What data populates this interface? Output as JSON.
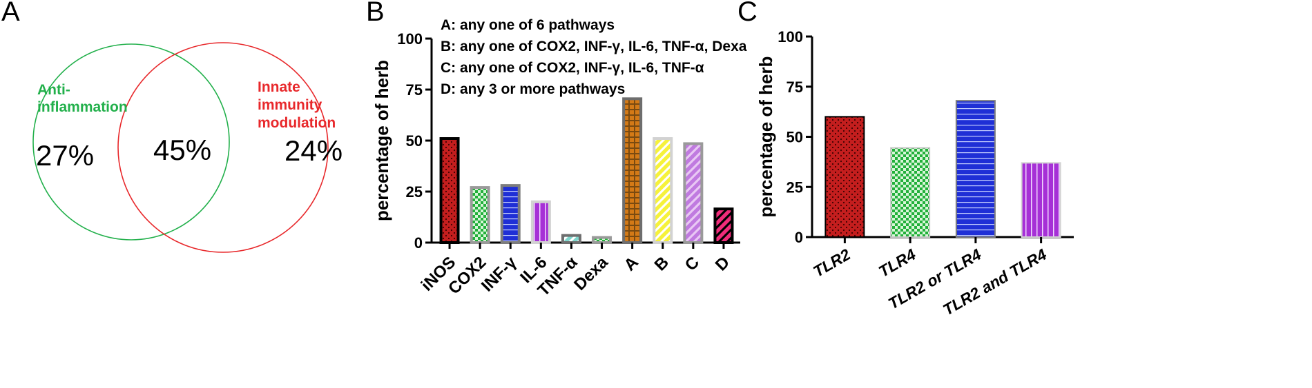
{
  "panels": {
    "a": {
      "letter": "A",
      "circles": [
        {
          "label_lines": [
            "Anti-",
            "inflammation"
          ],
          "color": "#22b04b"
        },
        {
          "label_lines": [
            "Innate",
            "immunity",
            "modulation"
          ],
          "color": "#e8282b"
        }
      ],
      "regions": [
        "27%",
        "45%",
        "24%"
      ]
    },
    "b": {
      "letter": "B",
      "legend": [
        "A: any one of 6 pathways",
        "B: any one of COX2, INF-γ, IL-6, TNF-α, Dexa",
        "C: any one of COX2, INF-γ, IL-6, TNF-α",
        "D: any 3 or more pathways"
      ]
    },
    "c": {
      "letter": "C"
    }
  },
  "chart_data": [
    {
      "type": "bar",
      "panel": "B",
      "ylabel": "percentage of herb",
      "ylim": [
        0,
        100
      ],
      "yticks": [
        0,
        25,
        50,
        75,
        100
      ],
      "categories": [
        "iNOS",
        "COX2",
        "INF-γ",
        "IL-6",
        "TNF-α",
        "Dexa",
        "A",
        "B",
        "C",
        "D"
      ],
      "values": [
        51,
        27,
        28,
        20,
        3.5,
        2.5,
        70.5,
        51,
        48.5,
        16.5
      ],
      "styles": [
        {
          "pattern": "dots",
          "fill": "#c41e1e",
          "ink": "#3a0000",
          "border": "#000000"
        },
        {
          "pattern": "checker",
          "fill": "#22b03a",
          "ink": "#d8f5d8",
          "border": "#9a9a9a"
        },
        {
          "pattern": "hlines",
          "fill": "#1f2fd6",
          "ink": "#c9d2ff",
          "border": "#7d7d7d"
        },
        {
          "pattern": "vlines",
          "fill": "#a630d6",
          "ink": "#f1d9ff",
          "border": "#d2d2d2"
        },
        {
          "pattern": "diag",
          "fill": "#7fd6cc",
          "ink": "#ffffff",
          "border": "#6e6e6e"
        },
        {
          "pattern": "checker",
          "fill": "#22b03a",
          "ink": "#d8f5d8",
          "border": "#9a9a9a"
        },
        {
          "pattern": "grid",
          "fill": "#d47a17",
          "ink": "#7a4a10",
          "border": "#6e6e6e"
        },
        {
          "pattern": "diag",
          "fill": "#f6f23a",
          "ink": "#ffffff",
          "border": "#d2d2d2"
        },
        {
          "pattern": "diag",
          "fill": "#c07ae0",
          "ink": "#e9c9f4",
          "border": "#9a9a9a"
        },
        {
          "pattern": "diag",
          "fill": "#f02c7a",
          "ink": "#000000",
          "border": "#000000"
        }
      ]
    },
    {
      "type": "bar",
      "panel": "C",
      "ylabel": "percentage of herb",
      "ylim": [
        0,
        100
      ],
      "yticks": [
        0,
        25,
        50,
        75,
        100
      ],
      "categories": [
        "TLR2",
        "TLR4",
        "TLR2 or TLR4",
        "TLR2 and TLR4"
      ],
      "values": [
        60,
        44.5,
        68,
        37
      ],
      "styles": [
        {
          "pattern": "dots",
          "fill": "#c41e1e",
          "ink": "#3a0000",
          "border": "#000000"
        },
        {
          "pattern": "checker",
          "fill": "#22b03a",
          "ink": "#d8f5d8",
          "border": "#c8c8c8"
        },
        {
          "pattern": "hlines",
          "fill": "#1f2fd6",
          "ink": "#c9d2ff",
          "border": "#7d7d7d"
        },
        {
          "pattern": "vlines",
          "fill": "#a630d6",
          "ink": "#f1d9ff",
          "border": "#d2d2d2"
        }
      ]
    }
  ]
}
